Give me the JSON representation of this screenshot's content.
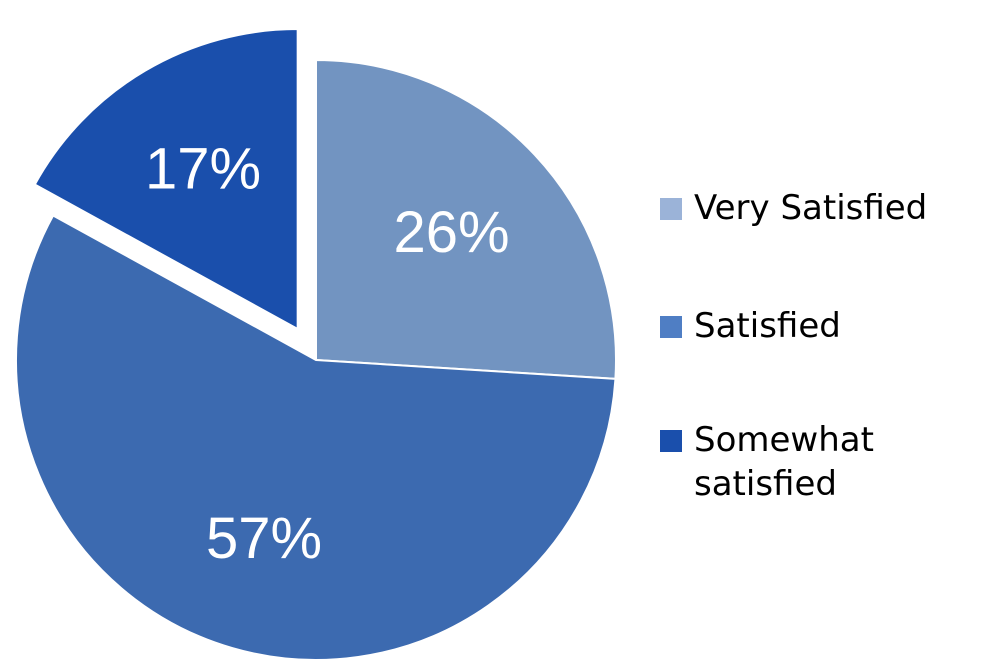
{
  "chart_data": {
    "type": "pie",
    "categories": [
      "Very Satisfied",
      "Satisfied",
      "Somewhat satisfied"
    ],
    "values": [
      26,
      57,
      17
    ],
    "data_labels": [
      "26%",
      "57%",
      "17%"
    ],
    "exploded": [
      false,
      false,
      true
    ],
    "colors": [
      "#7294c1",
      "#3c6ab0",
      "#1a4fac"
    ],
    "legend_position": "right",
    "title": ""
  },
  "legend": {
    "items": [
      {
        "label": "Very Satisfied",
        "color": "#9bb3d8"
      },
      {
        "label": "Satisfied",
        "color": "#4f7ec4"
      },
      {
        "label": "Somewhat\nsatisfied",
        "color": "#1a4fac"
      }
    ]
  }
}
